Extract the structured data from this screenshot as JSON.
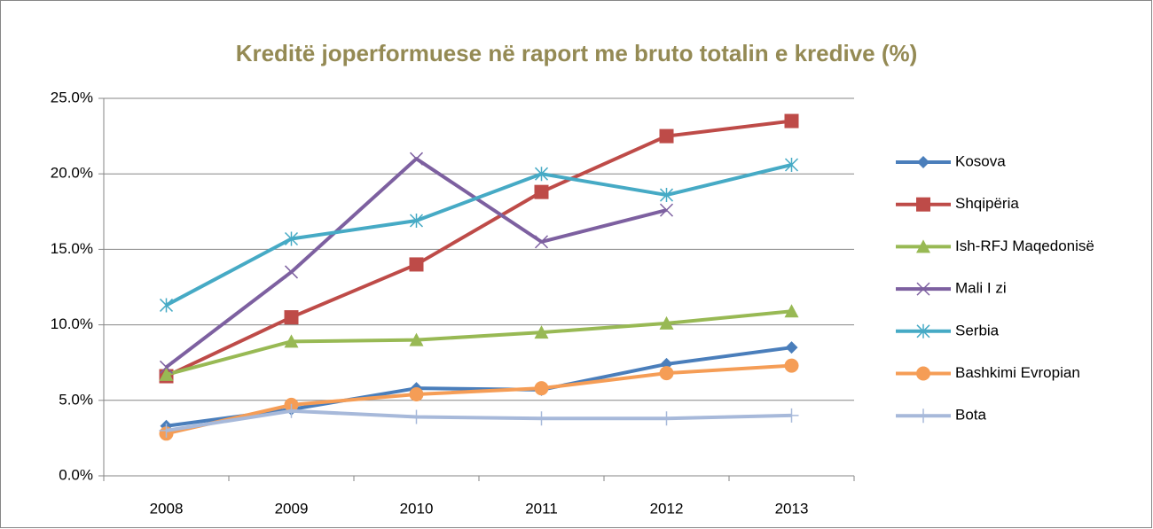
{
  "chart_data": {
    "type": "line",
    "title": "Kreditë joperformuese në raport me bruto totalin e kredive (%)",
    "categories": [
      "2008",
      "2009",
      "2010",
      "2011",
      "2012",
      "2013"
    ],
    "series": [
      {
        "name": "Kosova",
        "color": "#4a7ebb",
        "marker": "diamond",
        "values": [
          3.3,
          4.4,
          5.8,
          5.7,
          7.4,
          8.5
        ]
      },
      {
        "name": "Shqipëria",
        "color": "#be4b48",
        "marker": "square",
        "values": [
          6.6,
          10.5,
          14.0,
          18.8,
          22.5,
          23.5
        ]
      },
      {
        "name": "Ish-RFJ Maqedonisë",
        "color": "#98b954",
        "marker": "triangle",
        "values": [
          6.7,
          8.9,
          9.0,
          9.5,
          10.1,
          10.9
        ]
      },
      {
        "name": "Mali I zi",
        "color": "#7d60a0",
        "marker": "x",
        "values": [
          7.2,
          13.5,
          21.0,
          15.5,
          17.6,
          null
        ]
      },
      {
        "name": "Serbia",
        "color": "#46aac5",
        "marker": "star",
        "values": [
          11.3,
          15.7,
          16.9,
          20.0,
          18.6,
          20.6
        ]
      },
      {
        "name": "Bashkimi Evropian",
        "color": "#f59d56",
        "marker": "circle",
        "values": [
          2.8,
          4.7,
          5.4,
          5.8,
          6.8,
          7.3
        ]
      },
      {
        "name": "Bota",
        "color": "#a7b9da",
        "marker": "plus",
        "values": [
          3.0,
          4.3,
          3.9,
          3.8,
          3.8,
          4.0
        ]
      }
    ],
    "ylim": [
      0,
      25
    ],
    "yticks": [
      {
        "value": 0,
        "label": "0.0%"
      },
      {
        "value": 5,
        "label": "5.0%"
      },
      {
        "value": 10,
        "label": "10.0%"
      },
      {
        "value": 15,
        "label": "15.0%"
      },
      {
        "value": 20,
        "label": "20.0%"
      },
      {
        "value": 25,
        "label": "25.0%"
      }
    ],
    "grid": true,
    "legend": "right"
  }
}
